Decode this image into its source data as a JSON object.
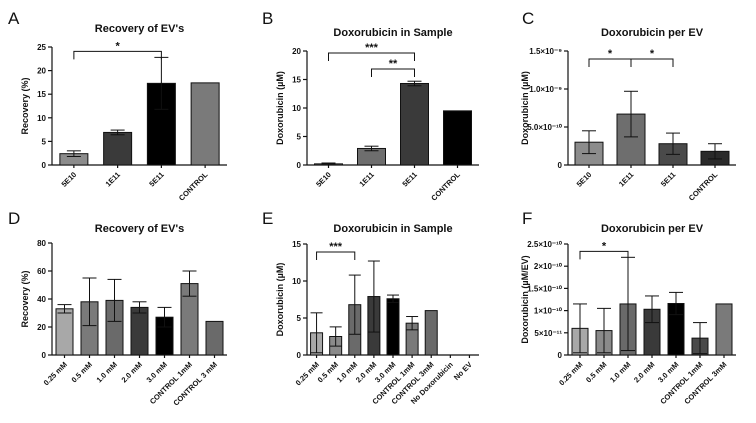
{
  "chart_data": [
    {
      "panel": "A",
      "type": "bar",
      "title": "Recovery of EV's",
      "ylabel": "Recovery (%)",
      "xlabel": "",
      "ylim": [
        0,
        25
      ],
      "yticks": [
        0,
        5,
        10,
        15,
        20,
        25
      ],
      "ytick_labels": [
        "0",
        "5",
        "10",
        "15",
        "20",
        "25"
      ],
      "categories": [
        "5E10",
        "1E11",
        "5E11",
        "CONTROL"
      ],
      "values": [
        2.4,
        6.9,
        17.3,
        17.4
      ],
      "errors": [
        0.6,
        0.5,
        5.5,
        null
      ],
      "colors": [
        "#8c8c8c",
        "#3a3a3a",
        "#000000",
        "#7a7a7a"
      ],
      "significance": [
        {
          "from": 0,
          "to": 2,
          "label": "*"
        }
      ]
    },
    {
      "panel": "B",
      "type": "bar",
      "title": "Doxorubicin in Sample",
      "ylabel": "Doxorubicin (µM)",
      "xlabel": "",
      "ylim": [
        0,
        20
      ],
      "yticks": [
        0,
        5,
        10,
        15,
        20
      ],
      "ytick_labels": [
        "0",
        "5",
        "10",
        "15",
        "20"
      ],
      "categories": [
        "5E10",
        "1E11",
        "5E11",
        "CONTROL"
      ],
      "values": [
        0.2,
        2.9,
        14.3,
        9.5
      ],
      "errors": [
        0.15,
        0.4,
        0.4,
        null
      ],
      "colors": [
        "#8c8c8c",
        "#6e6e6e",
        "#3a3a3a",
        "#000000"
      ],
      "significance": [
        {
          "from": 0,
          "to": 2,
          "label": "***"
        },
        {
          "from": 1,
          "to": 2,
          "label": "**"
        }
      ]
    },
    {
      "panel": "C",
      "type": "bar",
      "title": "Doxorubicin per EV",
      "ylabel": "Doxorubicin (µM)",
      "xlabel": "",
      "ylim": [
        0,
        1.5e-09
      ],
      "yticks": [
        0,
        5e-10,
        1e-09,
        1.5e-09
      ],
      "ytick_labels": [
        "0",
        "5.0×10⁻¹⁰",
        "1.0×10⁻⁹",
        "1.5×10⁻⁹"
      ],
      "categories": [
        "5E10",
        "1E11",
        "5E11",
        "CONTROL"
      ],
      "values": [
        3e-10,
        6.7e-10,
        2.8e-10,
        1.8e-10
      ],
      "errors": [
        1.5e-10,
        3e-10,
        1.4e-10,
        1e-10
      ],
      "colors": [
        "#8c8c8c",
        "#6e6e6e",
        "#4a4a4a",
        "#2a2a2a"
      ],
      "significance": [
        {
          "from": 0,
          "to": 1,
          "label": "*"
        },
        {
          "from": 1,
          "to": 2,
          "label": "*"
        }
      ]
    },
    {
      "panel": "D",
      "type": "bar",
      "title": "Recovery of EV's",
      "ylabel": "Recovery (%)",
      "xlabel": "",
      "ylim": [
        0,
        80
      ],
      "yticks": [
        0,
        20,
        40,
        60,
        80
      ],
      "ytick_labels": [
        "0",
        "20",
        "40",
        "60",
        "80"
      ],
      "categories": [
        "0.25 mM",
        "0.5 mM",
        "1.0 mM",
        "2.0 mM",
        "3.0 mM",
        "CONTROL 1mM",
        "CONTROL 3 mM"
      ],
      "values": [
        33,
        38,
        39,
        34,
        27,
        51,
        24
      ],
      "errors": [
        3,
        17,
        15,
        4,
        7,
        9,
        null
      ],
      "colors": [
        "#a8a8a8",
        "#7a7a7a",
        "#6a6a6a",
        "#3a3a3a",
        "#000000",
        "#7a7a7a",
        "#6a6a6a"
      ],
      "significance": []
    },
    {
      "panel": "E",
      "type": "bar",
      "title": "Doxorubicin in Sample",
      "ylabel": "Doxorubicin (µM)",
      "xlabel": "",
      "ylim": [
        0,
        15
      ],
      "yticks": [
        0,
        5,
        10,
        15
      ],
      "ytick_labels": [
        "0",
        "5",
        "10",
        "15"
      ],
      "categories": [
        "0.25 mM",
        "0.5 mM",
        "1.0 mM",
        "2.0 mM",
        "3.0 mM",
        "CONTROL 1mM",
        "CONTROL 3mM",
        "No Doxorubicin",
        "No EV"
      ],
      "values": [
        3.0,
        2.5,
        6.8,
        7.9,
        7.6,
        4.3,
        6.0,
        0,
        0
      ],
      "errors": [
        2.7,
        1.3,
        4.0,
        4.8,
        0.5,
        0.9,
        null,
        null,
        null
      ],
      "colors": [
        "#a8a8a8",
        "#8a8a8a",
        "#6a6a6a",
        "#3a3a3a",
        "#000000",
        "#7a7a7a",
        "#6a6a6a",
        "#ffffff",
        "#ffffff"
      ],
      "significance": [
        {
          "from": 0,
          "to": 2,
          "label": "***"
        }
      ]
    },
    {
      "panel": "F",
      "type": "bar",
      "title": "Doxorubicin per EV",
      "ylabel": "Doxorubicin (µM/EV)",
      "xlabel": "",
      "ylim": [
        0,
        2.5e-10
      ],
      "yticks": [
        0,
        5e-11,
        1e-10,
        1.5e-10,
        2e-10,
        2.5e-10
      ],
      "ytick_labels": [
        "0",
        "5×10⁻¹¹",
        "1×10⁻¹⁰",
        "1.5×10⁻¹⁰",
        "2×10⁻¹⁰",
        "2.5×10⁻¹⁰"
      ],
      "categories": [
        "0.25 mM",
        "0.5 mM",
        "1.0 mM",
        "2.0 mM",
        "3.0 mM",
        "CONTROL 1mM",
        "CONTROL 3mM"
      ],
      "values": [
        6e-11,
        5.5e-11,
        1.15e-10,
        1.03e-10,
        1.16e-10,
        3.8e-11,
        1.15e-10
      ],
      "errors": [
        5.5e-11,
        5e-11,
        1.05e-10,
        3e-11,
        2.5e-11,
        3.5e-11,
        null
      ],
      "colors": [
        "#a8a8a8",
        "#8a8a8a",
        "#6a6a6a",
        "#3a3a3a",
        "#000000",
        "#4a4a4a",
        "#7a7a7a"
      ],
      "significance": [
        {
          "from": 0,
          "to": 2,
          "label": "*"
        }
      ]
    }
  ]
}
